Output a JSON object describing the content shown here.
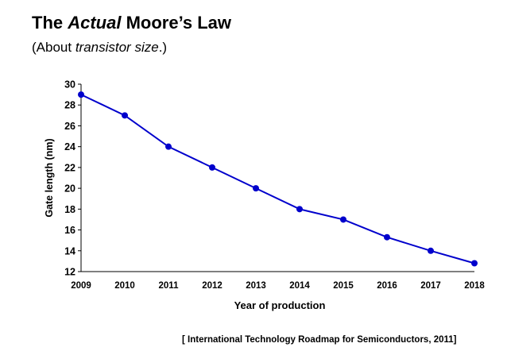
{
  "heading": {
    "title_pre": "The ",
    "title_em": "Actual",
    "title_post": " Moore’s Law",
    "subtitle_pre": "(About ",
    "subtitle_em": "transistor size",
    "subtitle_post": ".)"
  },
  "citation": "[ International Technology Roadmap for Semiconductors, 2011]",
  "chart_data": {
    "type": "line",
    "title": "The Actual Moore’s Law",
    "subtitle": "(About transistor size.)",
    "xlabel": "Year of production",
    "ylabel": "Gate length (nm)",
    "x": [
      "2009",
      "2010",
      "2011",
      "2012",
      "2013",
      "2014",
      "2015",
      "2016",
      "2017",
      "2018"
    ],
    "series": [
      {
        "name": "Gate length",
        "values": [
          29,
          27,
          24,
          22,
          20,
          18,
          17,
          15.3,
          14,
          12.8
        ],
        "color": "#0000cc"
      }
    ],
    "ylim": [
      12,
      30
    ],
    "yticks": [
      12,
      14,
      16,
      18,
      20,
      22,
      24,
      26,
      28,
      30
    ],
    "grid": false,
    "legend": "none"
  }
}
